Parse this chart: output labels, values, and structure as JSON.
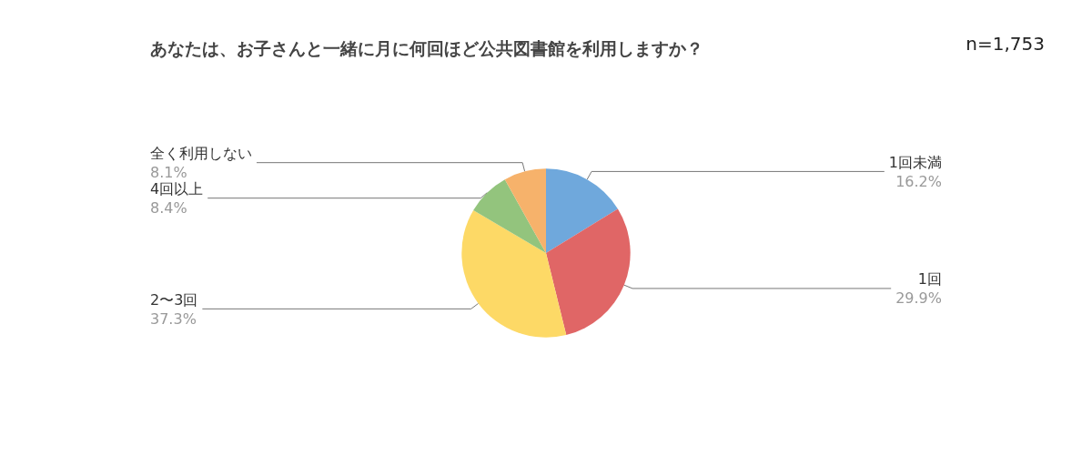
{
  "chart_data": {
    "type": "pie",
    "title": "あなたは、お子さんと一緒に月に何回ほど公共図書館を利用しますか？",
    "annotations": [
      "n=1,753"
    ],
    "categories": [
      "1回未満",
      "1回",
      "2〜3回",
      "4回以上",
      "全く利用しない"
    ],
    "values": [
      16.2,
      29.9,
      37.3,
      8.4,
      8.1
    ],
    "value_labels": [
      "16.2%",
      "29.9%",
      "37.3%",
      "8.4%",
      "8.1%"
    ],
    "colors": [
      "#6fa8dc",
      "#e06666",
      "#fdd966",
      "#93c47d",
      "#f6b26b"
    ],
    "legend": false
  }
}
